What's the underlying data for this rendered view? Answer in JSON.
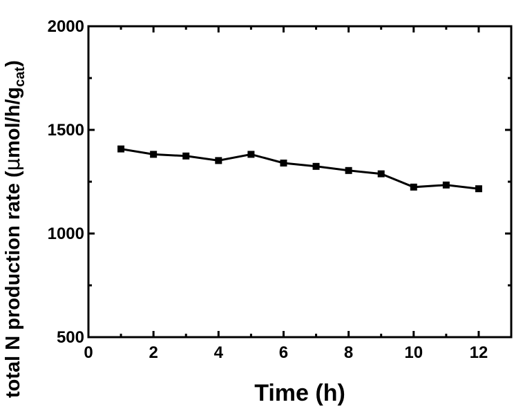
{
  "chart_data": {
    "type": "line",
    "title": "",
    "xlabel": "Time (h)",
    "ylabel_main": "total N production rate (",
    "ylabel_mu": "μ",
    "ylabel_rest": "mol/h/g",
    "ylabel_sub": "cat",
    "ylabel_close": ")",
    "xlim": [
      0,
      13
    ],
    "ylim": [
      500,
      2000
    ],
    "xticks": [
      0,
      2,
      4,
      6,
      8,
      10,
      12
    ],
    "yticks": [
      500,
      1000,
      1500,
      2000
    ],
    "grid": false,
    "marker": "square",
    "color": "#000000",
    "series": [
      {
        "x": [
          1,
          2,
          3,
          4,
          5,
          6,
          7,
          8,
          9,
          10,
          11,
          12
        ],
        "y": [
          1408,
          1382,
          1374,
          1352,
          1382,
          1340,
          1324,
          1304,
          1288,
          1224,
          1234,
          1216
        ]
      }
    ]
  }
}
